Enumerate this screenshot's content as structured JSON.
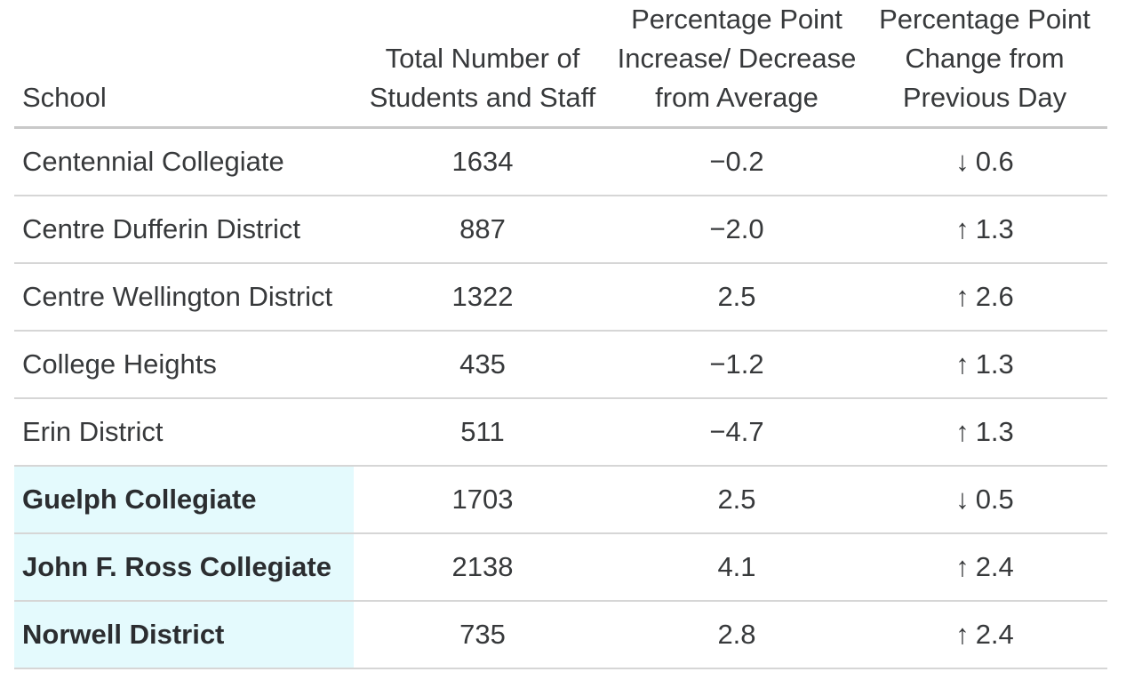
{
  "chart_data": {
    "type": "table",
    "columns": [
      {
        "id": "school",
        "label": "School",
        "lines": [
          "School"
        ]
      },
      {
        "id": "total",
        "label": "Total Number of Students and Staff",
        "lines": [
          "Total Number of",
          "Students and Staff"
        ]
      },
      {
        "id": "avg_diff",
        "label": "Percentage Point Increase/ Decrease from Average",
        "lines": [
          "Percentage Point",
          "Increase/ Decrease",
          "from Average"
        ]
      },
      {
        "id": "prev_change",
        "label": "Percentage Point Change from Previous Day",
        "lines": [
          "Percentage Point",
          "Change from",
          "Previous Day"
        ]
      }
    ],
    "rows": [
      {
        "school": "Centennial Collegiate",
        "total": "1634",
        "avg_diff": "−0.2",
        "change_direction": "down",
        "change_arrow": "↓",
        "change_value": "0.6",
        "highlighted": false
      },
      {
        "school": "Centre Dufferin District",
        "total": "887",
        "avg_diff": "−2.0",
        "change_direction": "up",
        "change_arrow": "↑",
        "change_value": "1.3",
        "highlighted": false
      },
      {
        "school": "Centre Wellington District",
        "total": "1322",
        "avg_diff": "2.5",
        "change_direction": "up",
        "change_arrow": "↑",
        "change_value": "2.6",
        "highlighted": false
      },
      {
        "school": "College Heights",
        "total": "435",
        "avg_diff": "−1.2",
        "change_direction": "up",
        "change_arrow": "↑",
        "change_value": "1.3",
        "highlighted": false
      },
      {
        "school": "Erin District",
        "total": "511",
        "avg_diff": "−4.7",
        "change_direction": "up",
        "change_arrow": "↑",
        "change_value": "1.3",
        "highlighted": false
      },
      {
        "school": "Guelph Collegiate",
        "total": "1703",
        "avg_diff": "2.5",
        "change_direction": "down",
        "change_arrow": "↓",
        "change_value": "0.5",
        "highlighted": true
      },
      {
        "school": "John F. Ross Collegiate",
        "total": "2138",
        "avg_diff": "4.1",
        "change_direction": "up",
        "change_arrow": "↑",
        "change_value": "2.4",
        "highlighted": true
      },
      {
        "school": "Norwell District",
        "total": "735",
        "avg_diff": "2.8",
        "change_direction": "up",
        "change_arrow": "↑",
        "change_value": "2.4",
        "highlighted": true
      }
    ],
    "title": "",
    "legend": [],
    "layout_hints": {
      "highlight_style": "first-column cyan background with bold school name",
      "grid": "horizontal row separators only"
    }
  },
  "colors": {
    "background": "#ffffff",
    "text": "#37393b",
    "bold_text": "#2b2d30",
    "highlight_bg": "#e4fafd",
    "header_border": "#c9c9c9",
    "row_border": "#d6d6d6"
  }
}
